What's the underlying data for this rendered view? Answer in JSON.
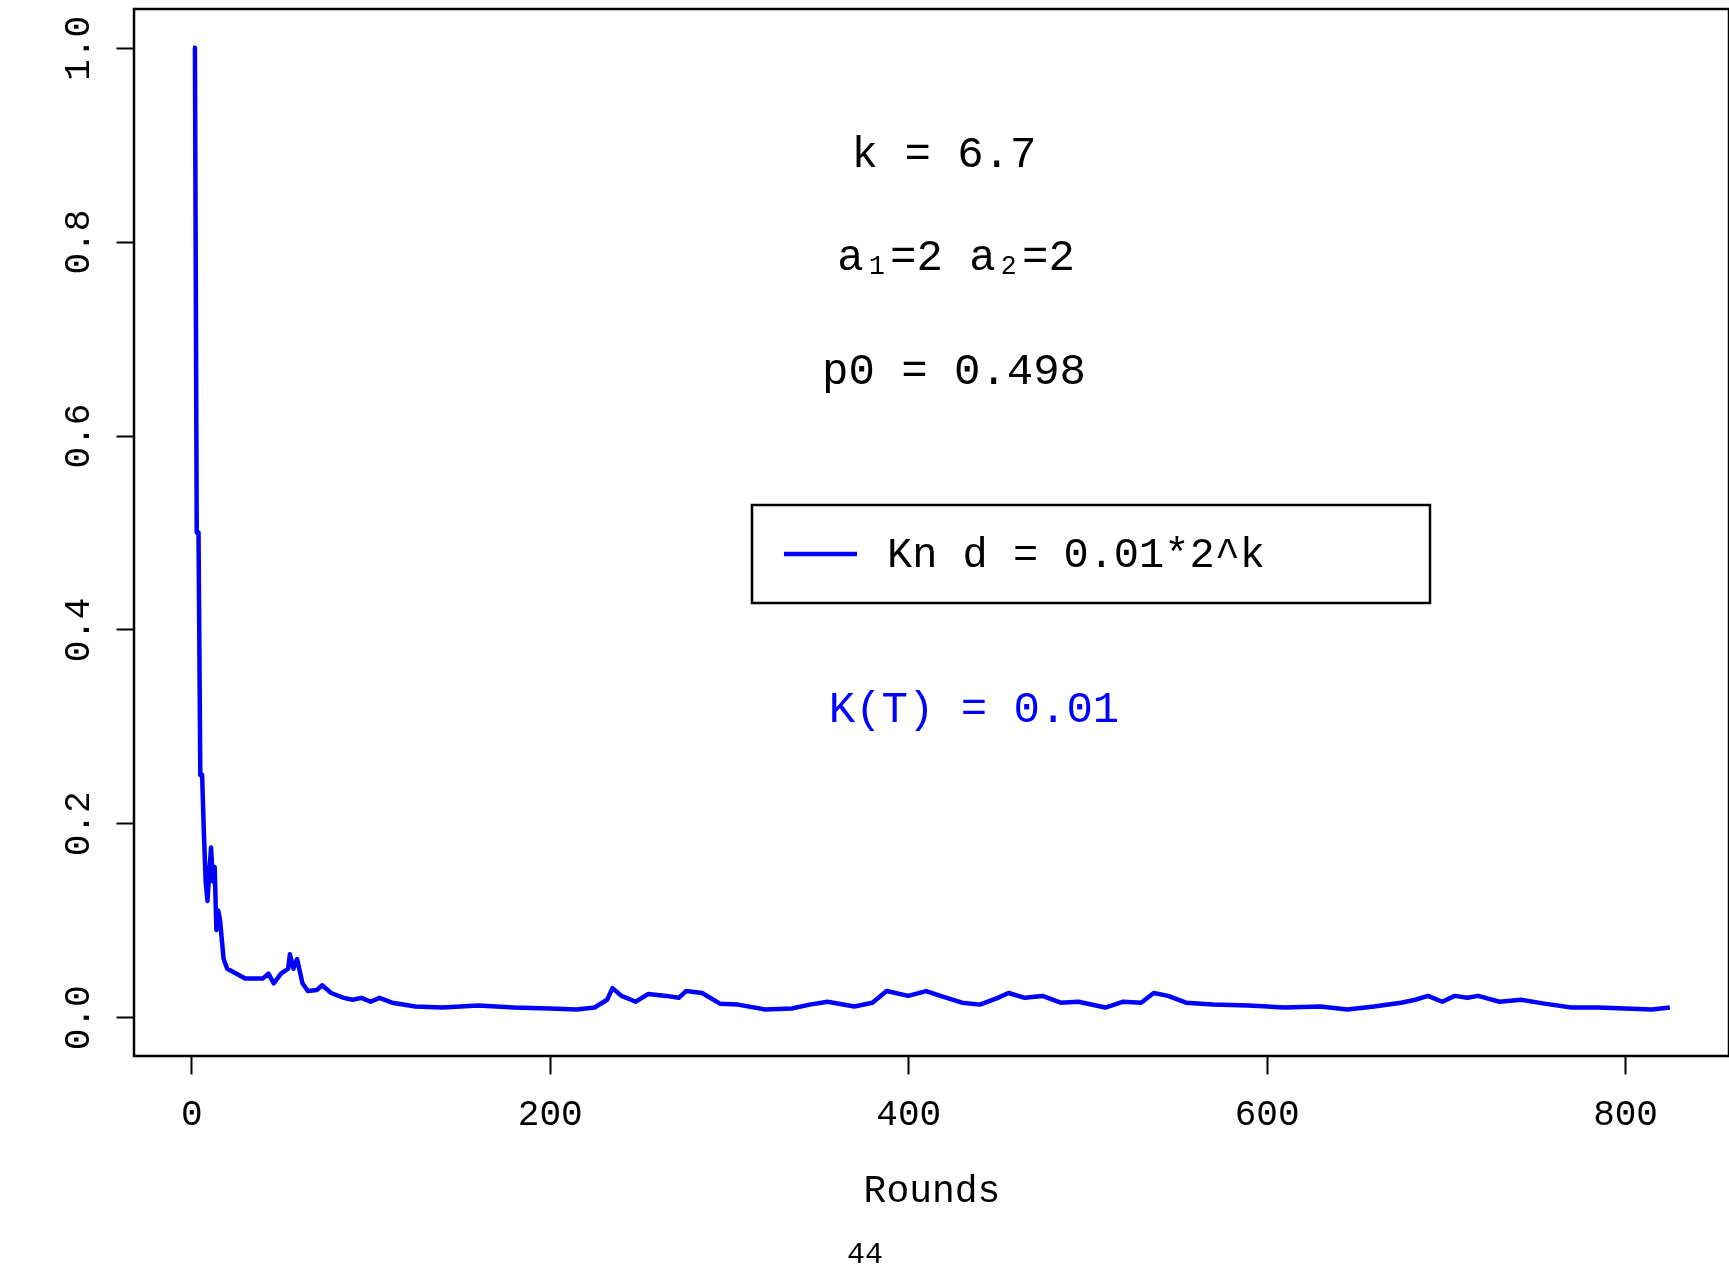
{
  "chart_data": {
    "type": "line",
    "xlabel": "Rounds",
    "legend": "right",
    "annotations": [
      "k =  6.7",
      "a₁=2 a₂=2",
      "p0 = 0.498",
      "K(T) = 0.01",
      "44"
    ],
    "x": [
      1,
      2,
      3,
      4,
      5,
      6,
      7,
      8,
      9,
      10,
      11,
      12,
      13,
      14,
      15,
      16,
      18,
      20,
      25,
      30,
      40,
      43,
      46,
      50,
      54,
      55,
      57,
      59,
      62,
      65,
      70,
      73,
      78,
      85,
      90,
      95,
      100,
      105,
      112,
      125,
      140,
      160,
      180,
      200,
      215,
      225,
      232,
      235,
      240,
      248,
      255,
      265,
      272,
      276,
      285,
      295,
      305,
      320,
      335,
      345,
      355,
      370,
      380,
      388,
      400,
      410,
      418,
      430,
      440,
      450,
      456,
      465,
      475,
      485,
      495,
      510,
      520,
      530,
      537,
      545,
      555,
      570,
      590,
      610,
      630,
      645,
      660,
      675,
      683,
      690,
      698,
      705,
      712,
      718,
      730,
      742,
      755,
      770,
      785,
      800,
      815,
      825
    ],
    "series": [
      {
        "name": "Kn d = 0.01*2^k",
        "color": "#0000ff",
        "values": [
          1.0,
          1.0,
          0.5,
          0.5,
          0.25,
          0.25,
          0.19,
          0.14,
          0.12,
          0.15,
          0.175,
          0.14,
          0.155,
          0.09,
          0.11,
          0.1,
          0.06,
          0.05,
          0.045,
          0.04,
          0.04,
          0.045,
          0.035,
          0.045,
          0.05,
          0.065,
          0.05,
          0.06,
          0.035,
          0.027,
          0.028,
          0.033,
          0.025,
          0.02,
          0.018,
          0.02,
          0.016,
          0.02,
          0.015,
          0.011,
          0.01,
          0.012,
          0.01,
          0.009,
          0.008,
          0.01,
          0.018,
          0.03,
          0.022,
          0.016,
          0.024,
          0.022,
          0.02,
          0.027,
          0.025,
          0.014,
          0.013,
          0.008,
          0.009,
          0.013,
          0.016,
          0.011,
          0.015,
          0.027,
          0.022,
          0.027,
          0.022,
          0.015,
          0.013,
          0.02,
          0.025,
          0.02,
          0.022,
          0.015,
          0.016,
          0.01,
          0.016,
          0.015,
          0.025,
          0.022,
          0.015,
          0.013,
          0.012,
          0.01,
          0.011,
          0.008,
          0.011,
          0.015,
          0.018,
          0.022,
          0.016,
          0.022,
          0.02,
          0.022,
          0.016,
          0.018,
          0.014,
          0.01,
          0.01,
          0.009,
          0.008,
          0.01
        ]
      }
    ],
    "xlim": [
      -32,
      858
    ],
    "ylim": [
      -0.04,
      1.04
    ],
    "xticks": [
      0,
      200,
      400,
      600,
      800
    ],
    "yticks": [
      {
        "value": 0,
        "label": "0.0"
      },
      {
        "value": 0.2,
        "label": "0.2"
      },
      {
        "value": 0.4,
        "label": "0.4"
      },
      {
        "value": 0.6,
        "label": "0.6"
      },
      {
        "value": 0.8,
        "label": "0.8"
      },
      {
        "value": 1,
        "label": "1.0"
      }
    ],
    "line_style": "solid",
    "marker": "none"
  }
}
